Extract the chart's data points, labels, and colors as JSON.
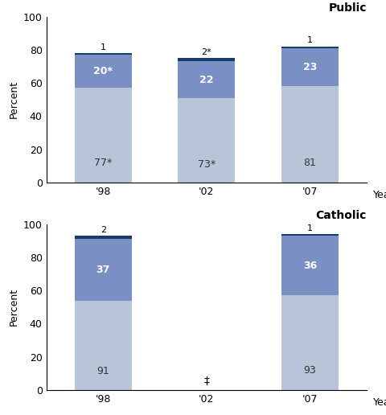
{
  "public": {
    "years": [
      "'98",
      "'02",
      "'07"
    ],
    "seg1": [
      57,
      51,
      58
    ],
    "seg2": [
      20,
      22,
      23
    ],
    "seg3": [
      1,
      2,
      1
    ],
    "seg1_labels": [
      "77*",
      "73*",
      "81"
    ],
    "seg2_labels": [
      "20*",
      "22",
      "23"
    ],
    "seg3_labels": [
      "1",
      "2*",
      "1"
    ],
    "title": "Public"
  },
  "catholic": {
    "years": [
      "'98",
      "'02",
      "'07"
    ],
    "seg1": [
      54,
      null,
      57
    ],
    "seg2": [
      37,
      null,
      36
    ],
    "seg3": [
      2,
      null,
      1
    ],
    "seg1_labels": [
      "91",
      "‡",
      "93"
    ],
    "seg2_labels": [
      "37",
      null,
      "36"
    ],
    "seg3_labels": [
      "2",
      null,
      "1"
    ],
    "title": "Catholic"
  },
  "colors": {
    "seg1": "#b8c4d8",
    "seg2": "#7a8fc4",
    "seg3": "#1a3a6b"
  },
  "bar_width": 0.55,
  "figsize": [
    4.8,
    5.16
  ],
  "dpi": 100
}
